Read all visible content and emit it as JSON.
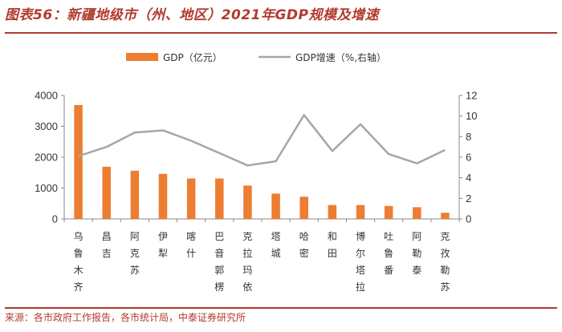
{
  "header": {
    "title": "图表56：新疆地级市（州、地区）2021年GDP规模及增速",
    "source": "来源：各市政府工作报告，各市统计局，中泰证券研究所"
  },
  "colors": {
    "bar": "#ed7d31",
    "line": "#a6a6a6",
    "accent": "#b23a2e"
  },
  "chart_data": {
    "type": "bar",
    "title": "新疆地级市（州、地区）2021年GDP规模及增速",
    "categories": [
      "乌鲁木齐",
      "昌吉",
      "阿克苏",
      "伊犁",
      "喀什",
      "巴音郭楞",
      "克拉玛依",
      "塔城",
      "哈密",
      "和田",
      "博尔塔拉",
      "吐鲁番",
      "阿勒泰",
      "克孜勒苏"
    ],
    "series": [
      {
        "name": "GDP（亿元）",
        "type": "bar",
        "axis": "left",
        "values": [
          3690,
          1690,
          1560,
          1460,
          1310,
          1310,
          1080,
          820,
          720,
          450,
          450,
          420,
          380,
          200
        ]
      },
      {
        "name": "GDP增速（%,右轴）",
        "type": "line",
        "axis": "right",
        "values": [
          6.1,
          7.0,
          8.4,
          8.6,
          7.6,
          6.4,
          5.2,
          5.6,
          10.1,
          6.6,
          9.2,
          6.3,
          5.4,
          6.7
        ]
      }
    ],
    "y_left": {
      "min": 0,
      "max": 4000,
      "ticks": [
        "0",
        "1000",
        "2000",
        "3000",
        "4000"
      ]
    },
    "y_right": {
      "min": 0,
      "max": 12,
      "ticks": [
        "0",
        "2",
        "4",
        "6",
        "8",
        "10",
        "12"
      ]
    },
    "legend": {
      "position": "top",
      "labels": [
        "GDP（亿元）",
        "GDP增速（%,右轴）"
      ]
    }
  }
}
